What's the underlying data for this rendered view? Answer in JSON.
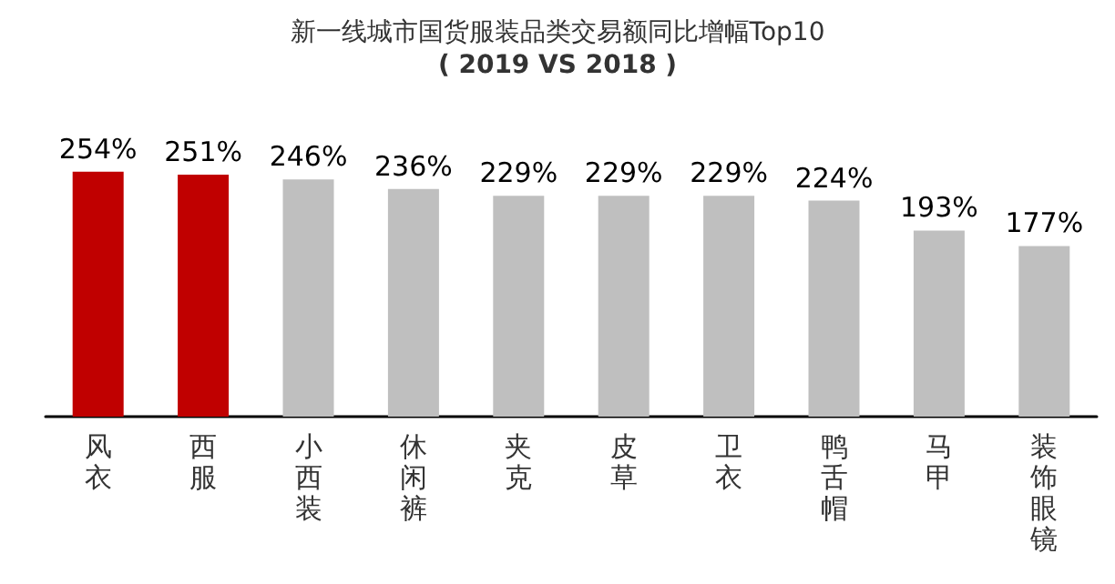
{
  "chart_data": {
    "type": "bar",
    "title": "新一线城市国货服装品类交易额同比增幅Top10",
    "subtitle": "( 2019 VS 2018 )",
    "categories": [
      "风衣",
      "西服",
      "小西装",
      "休闲裤",
      "夹克",
      "皮草",
      "卫衣",
      "鸭舌帽",
      "马甲",
      "装饰眼镜"
    ],
    "values": [
      254,
      251,
      246,
      236,
      229,
      229,
      229,
      224,
      193,
      177
    ],
    "colors": [
      "#c00000",
      "#c00000",
      "#bfbfbf",
      "#bfbfbf",
      "#bfbfbf",
      "#bfbfbf",
      "#bfbfbf",
      "#bfbfbf",
      "#bfbfbf",
      "#bfbfbf"
    ],
    "value_labels": [
      "254%",
      "251%",
      "246%",
      "236%",
      "229%",
      "229%",
      "229%",
      "224%",
      "193%",
      "177%"
    ]
  }
}
